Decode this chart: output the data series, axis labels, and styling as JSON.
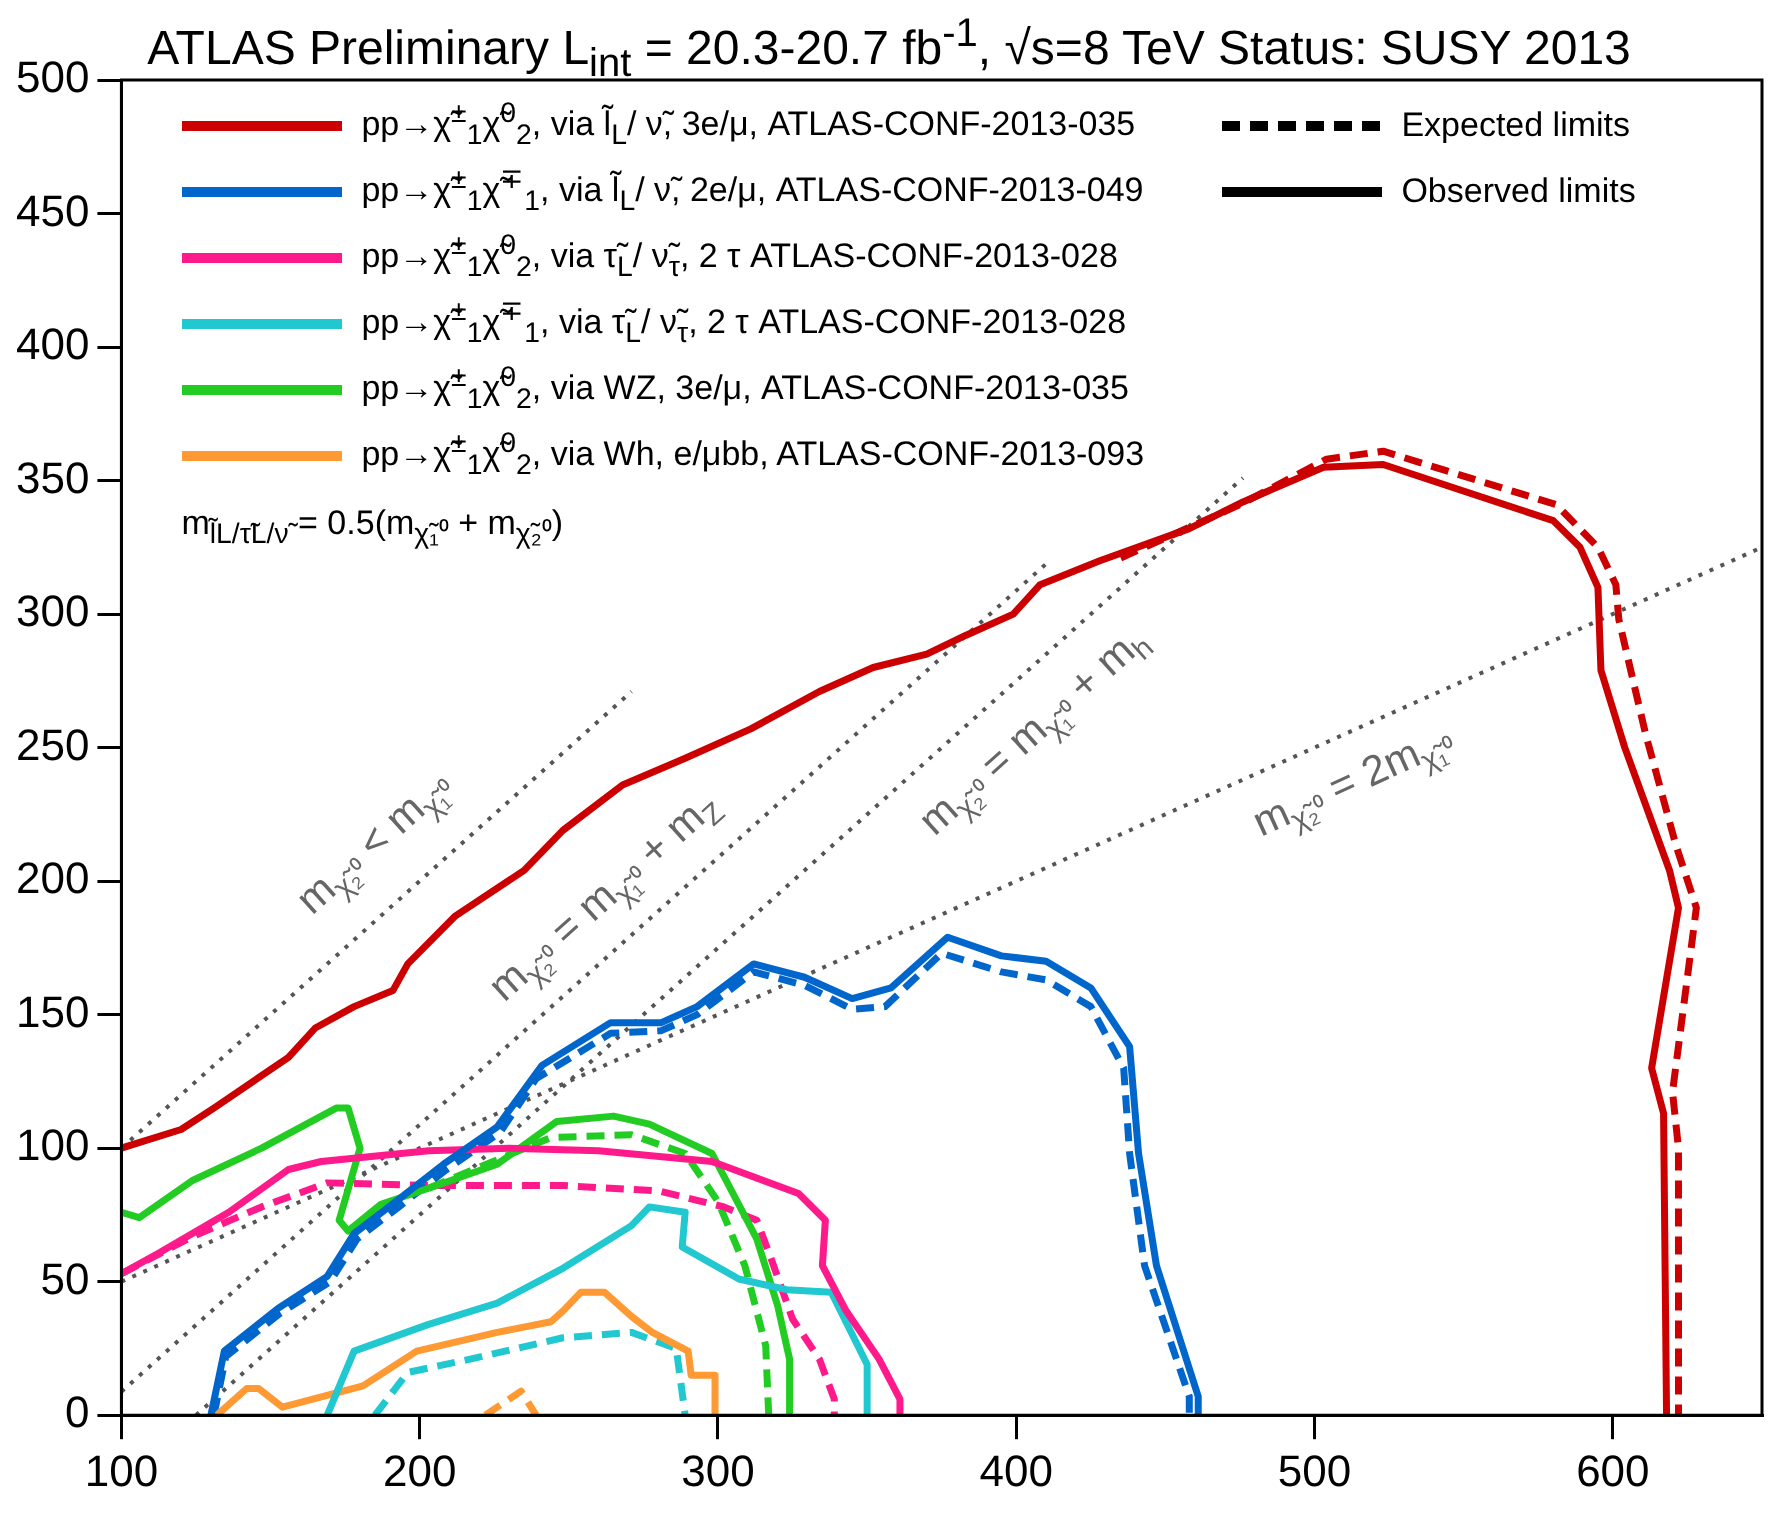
{
  "chart_data": {
    "type": "line",
    "title": "ATLAS Preliminary   L$_{int}$ = 20.3-20.7 fb$^{-1}$, √s=8 TeV   Status: SUSY 2013",
    "xlim": [
      100,
      650
    ],
    "xticks": [
      100,
      200,
      300,
      400,
      500,
      600
    ],
    "ylim": [
      0,
      500
    ],
    "yticks": [
      0,
      50,
      100,
      150,
      200,
      250,
      300,
      350,
      400,
      450,
      500
    ],
    "grid": false,
    "marker": "none",
    "legend": "top left",
    "annotations": [
      "m$_{l̃L/τ̃L/ν̃}$ = 0.5(m$_{χ̃₁⁰}$ + m$_{χ̃₂⁰}$)",
      "m$_{χ̃₂⁰}$ < m$_{χ̃₁⁰}$",
      "m$_{χ̃₂⁰}$ = m$_{χ̃₁⁰}$ + m$_{Z}$",
      "m$_{χ̃₂⁰}$ = m$_{χ̃₁⁰}$ + m$_{h}$",
      "m$_{χ̃₂⁰}$ = 2m$_{χ̃₁⁰}$"
    ],
    "series": [
      {
        "name": "pp→χ̃$^{±}$$_{1}$χ̃$^{0}$$_{2}$, via l̃$_{L}$/ ν̃,  3e/μ, ATLAS-CONF-2013-035",
        "type": "line",
        "color": "#cc0000",
        "line_style": "solid",
        "x": [
          100,
          120,
          131,
          156,
          165,
          178,
          191,
          196,
          212,
          235,
          248,
          268,
          289,
          311,
          334,
          352,
          370,
          383,
          399,
          408,
          428,
          458,
          476,
          503,
          523,
          580,
          589,
          595,
          596,
          604,
          619,
          622,
          613,
          617,
          618
        ],
        "values": [
          100,
          107,
          115,
          134,
          145,
          153,
          159,
          169,
          187,
          204,
          219,
          236,
          246,
          257,
          271,
          280,
          285,
          292,
          300,
          311,
          320,
          332,
          342,
          355,
          356,
          335,
          325,
          310,
          279,
          250,
          204,
          190,
          130,
          113,
          0
        ]
      },
      {
        "name": "pp→χ̃$^{±}$$_{1}$χ̃$^{∓}$$_{1}$, via l̃$_{L}$/ ν̃,  2e/μ, ATLAS-CONF-2013-049",
        "type": "line",
        "color": "#0066cc",
        "line_style": "solid",
        "x": [
          130,
          134.5,
          152.5,
          169,
          178,
          192,
          208,
          226,
          241,
          264,
          281,
          293,
          312,
          329,
          345,
          358,
          377,
          395,
          410,
          425,
          438,
          441,
          447,
          461,
          461
        ],
        "values": [
          0,
          24,
          40,
          52,
          68,
          80,
          94,
          108,
          131,
          147,
          147,
          153,
          169,
          164,
          156,
          160,
          179,
          172,
          170,
          160,
          138,
          98,
          56,
          7,
          0
        ]
      },
      {
        "name": "pp→χ̃$^{±}$$_{1}$χ̃$^{0}$$_{2}$, via τ̃$_{L}$/ ν̃$_{τ}$,  2 τ ATLAS-CONF-2013-028",
        "type": "line",
        "color": "#ff1a8c",
        "line_style": "solid",
        "x": [
          100,
          113,
          136,
          156,
          167,
          203,
          230,
          260,
          298,
          327,
          336,
          335,
          343,
          354,
          361,
          361
        ],
        "values": [
          53,
          61,
          76,
          92,
          95,
          99,
          100,
          99,
          95,
          83,
          73,
          56,
          39,
          21,
          6,
          0
        ]
      },
      {
        "name": "pp→χ̃$^{±}$$_{1}$χ̃$^{∓}$$_{1}$, via τ̃$_{L}$/ ν̃$_{τ}$,  2 τ ATLAS-CONF-2013-028",
        "type": "line",
        "color": "#22c8d0",
        "line_style": "solid",
        "x": [
          169,
          178,
          203,
          226,
          248,
          271,
          277,
          289,
          288,
          307,
          323,
          338,
          350,
          350
        ],
        "values": [
          0,
          24,
          34,
          42,
          55,
          71,
          78,
          76,
          63,
          51,
          47,
          46,
          19,
          0
        ]
      },
      {
        "name": "pp→χ̃$^{±}$$_{1}$χ̃$^{0}$$_{2}$, via WZ,  3e/μ, ATLAS-CONF-2013-035",
        "type": "line",
        "color": "#22cc22",
        "line_style": "solid",
        "x": [
          100,
          106,
          124,
          147,
          172,
          176,
          180,
          173,
          176,
          187,
          203,
          226,
          246,
          265,
          277,
          298,
          313,
          320,
          324,
          324
        ],
        "values": [
          76,
          74,
          88,
          100,
          115,
          115,
          100,
          73,
          69,
          79,
          85,
          94,
          110,
          112,
          109,
          98,
          66,
          41,
          21,
          0
        ]
      },
      {
        "name": "pp→χ̃$^{±}$$_{1}$χ̃$^{0}$$_{2}$, via Wh, e/μbb, ATLAS-CONF-2013-093",
        "type": "line",
        "color": "#ff9933",
        "line_style": "solid",
        "x": [
          132,
          142,
          146,
          154,
          181,
          199,
          226,
          244,
          248,
          254,
          262,
          271,
          278,
          290,
          291,
          299,
          299
        ],
        "values": [
          0,
          10,
          10,
          3,
          11,
          24,
          31,
          35,
          39,
          46,
          46,
          37,
          31,
          24,
          15,
          15,
          0
        ]
      },
      {
        "type": "line",
        "color": "#cc0000",
        "line_style": "dashed",
        "x": [
          435,
          475,
          504,
          523,
          581,
          595,
          601,
          602,
          611,
          621,
          628,
          620,
          622,
          622
        ],
        "values": [
          321,
          341,
          358,
          361,
          341,
          325,
          311,
          298,
          255,
          214,
          190,
          121,
          100,
          0
        ]
      },
      {
        "type": "line",
        "color": "#0066cc",
        "line_style": "dashed",
        "x": [
          131,
          135,
          153,
          170,
          179,
          193,
          209,
          227,
          239,
          264,
          281,
          293,
          312,
          329,
          345,
          356,
          375,
          395,
          410,
          425,
          436,
          438,
          443,
          458,
          458
        ],
        "values": [
          0,
          22,
          38,
          50,
          66,
          78,
          92,
          106,
          126,
          143,
          144,
          150,
          166,
          161,
          152,
          153,
          173,
          166,
          163,
          153,
          130,
          98,
          56,
          7,
          0
        ]
      },
      {
        "type": "line",
        "color": "#ff1a8c",
        "line_style": "dashed",
        "x": [
          100,
          124,
          147,
          169,
          203,
          248,
          280,
          302,
          313,
          318,
          325,
          334,
          339,
          339
        ],
        "values": [
          53,
          67,
          78,
          87,
          86,
          86,
          84,
          78,
          73,
          58,
          36,
          21,
          6,
          0
        ]
      },
      {
        "type": "line",
        "color": "#22c8d0",
        "line_style": "dashed",
        "x": [
          185,
          196,
          217,
          248,
          271,
          286,
          289
        ],
        "values": [
          0,
          16,
          21,
          29,
          31,
          25,
          0
        ]
      },
      {
        "type": "line",
        "color": "#22cc22",
        "line_style": "dashed",
        "x": [
          203,
          244,
          271,
          289,
          300,
          309,
          316,
          317
        ],
        "values": [
          85,
          104,
          105,
          98,
          80,
          56,
          26,
          0
        ]
      },
      {
        "type": "line",
        "color": "#ff9933",
        "line_style": "dashed",
        "x": [
          222,
          234,
          239
        ],
        "values": [
          0,
          9,
          0
        ]
      },
      {
        "type": "line",
        "color": "#555555",
        "line_style": "dotted",
        "x": [
          100,
          271
        ],
        "values": [
          100,
          271
        ]
      },
      {
        "type": "line",
        "color": "#555555",
        "line_style": "dotted",
        "x": [
          100,
          410
        ],
        "values": [
          8.8,
          318.8
        ]
      },
      {
        "type": "line",
        "color": "#555555",
        "line_style": "dotted",
        "x": [
          125,
          476
        ],
        "values": [
          0,
          351
        ]
      },
      {
        "type": "line",
        "color": "#555555",
        "line_style": "dotted",
        "x": [
          100,
          650
        ],
        "values": [
          50,
          325
        ]
      },
      {
        "name": "Expected limits",
        "type": "line",
        "color": "#000000",
        "line_style": "dashed"
      },
      {
        "name": "Observed limits",
        "type": "line",
        "color": "#000000",
        "line_style": "solid"
      }
    ]
  }
}
